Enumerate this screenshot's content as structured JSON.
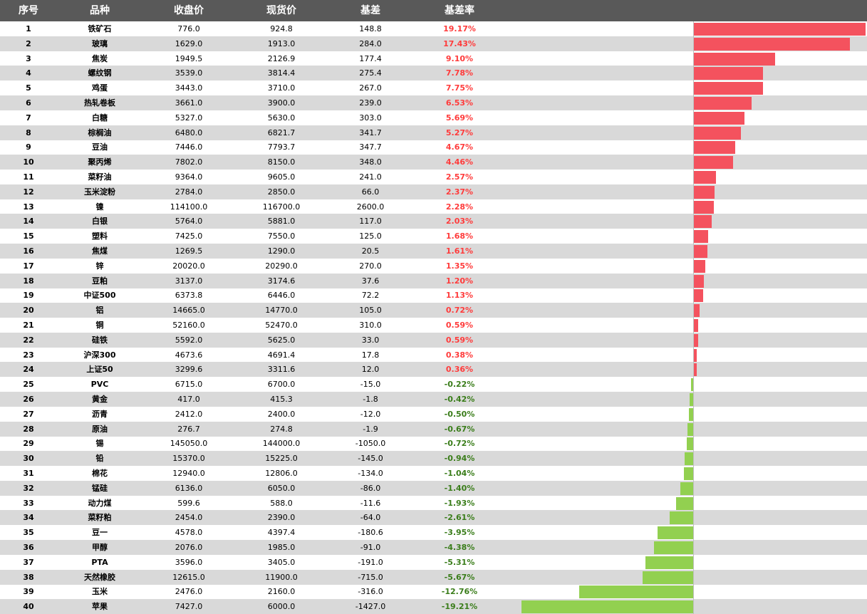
{
  "header": {
    "col_idx": "序号",
    "col_name": "品种",
    "col_close": "收盘价",
    "col_spot": "现货价",
    "col_basis": "基差",
    "col_rate": "基差率"
  },
  "colors": {
    "header_bg": "#595959",
    "alt_row": "#d9d9d9",
    "positive": "#ff3b3b",
    "negative": "#e53935",
    "bar_positive": "#f4525e",
    "bar_negative": "#92d050",
    "rate_negative_text": "#3a7d1a"
  },
  "chart_data": {
    "type": "bar",
    "orientation": "horizontal",
    "title": "",
    "xlabel": "",
    "ylabel": "",
    "xlim": [
      -0.1921,
      0.1917
    ],
    "grid": false,
    "columns": [
      "序号",
      "品种",
      "收盘价",
      "现货价",
      "基差",
      "基差率"
    ],
    "rows": [
      {
        "idx": "1",
        "name": "铁矿石",
        "close": "776.0",
        "spot": "924.8",
        "basis": "148.8",
        "rate": "19.17%",
        "value": 0.1917
      },
      {
        "idx": "2",
        "name": "玻璃",
        "close": "1629.0",
        "spot": "1913.0",
        "basis": "284.0",
        "rate": "17.43%",
        "value": 0.1743
      },
      {
        "idx": "3",
        "name": "焦炭",
        "close": "1949.5",
        "spot": "2126.9",
        "basis": "177.4",
        "rate": "9.10%",
        "value": 0.091
      },
      {
        "idx": "4",
        "name": "螺纹钢",
        "close": "3539.0",
        "spot": "3814.4",
        "basis": "275.4",
        "rate": "7.78%",
        "value": 0.0778
      },
      {
        "idx": "5",
        "name": "鸡蛋",
        "close": "3443.0",
        "spot": "3710.0",
        "basis": "267.0",
        "rate": "7.75%",
        "value": 0.0775
      },
      {
        "idx": "6",
        "name": "热轧卷板",
        "close": "3661.0",
        "spot": "3900.0",
        "basis": "239.0",
        "rate": "6.53%",
        "value": 0.0653
      },
      {
        "idx": "7",
        "name": "白糖",
        "close": "5327.0",
        "spot": "5630.0",
        "basis": "303.0",
        "rate": "5.69%",
        "value": 0.0569
      },
      {
        "idx": "8",
        "name": "棕榈油",
        "close": "6480.0",
        "spot": "6821.7",
        "basis": "341.7",
        "rate": "5.27%",
        "value": 0.0527
      },
      {
        "idx": "9",
        "name": "豆油",
        "close": "7446.0",
        "spot": "7793.7",
        "basis": "347.7",
        "rate": "4.67%",
        "value": 0.0467
      },
      {
        "idx": "10",
        "name": "聚丙烯",
        "close": "7802.0",
        "spot": "8150.0",
        "basis": "348.0",
        "rate": "4.46%",
        "value": 0.0446
      },
      {
        "idx": "11",
        "name": "菜籽油",
        "close": "9364.0",
        "spot": "9605.0",
        "basis": "241.0",
        "rate": "2.57%",
        "value": 0.0257
      },
      {
        "idx": "12",
        "name": "玉米淀粉",
        "close": "2784.0",
        "spot": "2850.0",
        "basis": "66.0",
        "rate": "2.37%",
        "value": 0.0237
      },
      {
        "idx": "13",
        "name": "镍",
        "close": "114100.0",
        "spot": "116700.0",
        "basis": "2600.0",
        "rate": "2.28%",
        "value": 0.0228
      },
      {
        "idx": "14",
        "name": "白银",
        "close": "5764.0",
        "spot": "5881.0",
        "basis": "117.0",
        "rate": "2.03%",
        "value": 0.0203
      },
      {
        "idx": "15",
        "name": "塑料",
        "close": "7425.0",
        "spot": "7550.0",
        "basis": "125.0",
        "rate": "1.68%",
        "value": 0.0168
      },
      {
        "idx": "16",
        "name": "焦煤",
        "close": "1269.5",
        "spot": "1290.0",
        "basis": "20.5",
        "rate": "1.61%",
        "value": 0.0161
      },
      {
        "idx": "17",
        "name": "锌",
        "close": "20020.0",
        "spot": "20290.0",
        "basis": "270.0",
        "rate": "1.35%",
        "value": 0.0135
      },
      {
        "idx": "18",
        "name": "豆粕",
        "close": "3137.0",
        "spot": "3174.6",
        "basis": "37.6",
        "rate": "1.20%",
        "value": 0.012
      },
      {
        "idx": "19",
        "name": "中证500",
        "close": "6373.8",
        "spot": "6446.0",
        "basis": "72.2",
        "rate": "1.13%",
        "value": 0.0113
      },
      {
        "idx": "20",
        "name": "铝",
        "close": "14665.0",
        "spot": "14770.0",
        "basis": "105.0",
        "rate": "0.72%",
        "value": 0.0072
      },
      {
        "idx": "21",
        "name": "铜",
        "close": "52160.0",
        "spot": "52470.0",
        "basis": "310.0",
        "rate": "0.59%",
        "value": 0.0059
      },
      {
        "idx": "22",
        "name": "硅铁",
        "close": "5592.0",
        "spot": "5625.0",
        "basis": "33.0",
        "rate": "0.59%",
        "value": 0.0059
      },
      {
        "idx": "23",
        "name": "沪深300",
        "close": "4673.6",
        "spot": "4691.4",
        "basis": "17.8",
        "rate": "0.38%",
        "value": 0.0038
      },
      {
        "idx": "24",
        "name": "上证50",
        "close": "3299.6",
        "spot": "3311.6",
        "basis": "12.0",
        "rate": "0.36%",
        "value": 0.0036
      },
      {
        "idx": "25",
        "name": "PVC",
        "close": "6715.0",
        "spot": "6700.0",
        "basis": "-15.0",
        "rate": "-0.22%",
        "value": -0.0022
      },
      {
        "idx": "26",
        "name": "黄金",
        "close": "417.0",
        "spot": "415.3",
        "basis": "-1.8",
        "rate": "-0.42%",
        "value": -0.0042
      },
      {
        "idx": "27",
        "name": "沥青",
        "close": "2412.0",
        "spot": "2400.0",
        "basis": "-12.0",
        "rate": "-0.50%",
        "value": -0.005
      },
      {
        "idx": "28",
        "name": "原油",
        "close": "276.7",
        "spot": "274.8",
        "basis": "-1.9",
        "rate": "-0.67%",
        "value": -0.0067
      },
      {
        "idx": "29",
        "name": "锡",
        "close": "145050.0",
        "spot": "144000.0",
        "basis": "-1050.0",
        "rate": "-0.72%",
        "value": -0.0072
      },
      {
        "idx": "30",
        "name": "铅",
        "close": "15370.0",
        "spot": "15225.0",
        "basis": "-145.0",
        "rate": "-0.94%",
        "value": -0.0094
      },
      {
        "idx": "31",
        "name": "棉花",
        "close": "12940.0",
        "spot": "12806.0",
        "basis": "-134.0",
        "rate": "-1.04%",
        "value": -0.0104
      },
      {
        "idx": "32",
        "name": "锰硅",
        "close": "6136.0",
        "spot": "6050.0",
        "basis": "-86.0",
        "rate": "-1.40%",
        "value": -0.014
      },
      {
        "idx": "33",
        "name": "动力煤",
        "close": "599.6",
        "spot": "588.0",
        "basis": "-11.6",
        "rate": "-1.93%",
        "value": -0.0193
      },
      {
        "idx": "34",
        "name": "菜籽粕",
        "close": "2454.0",
        "spot": "2390.0",
        "basis": "-64.0",
        "rate": "-2.61%",
        "value": -0.0261
      },
      {
        "idx": "35",
        "name": "豆一",
        "close": "4578.0",
        "spot": "4397.4",
        "basis": "-180.6",
        "rate": "-3.95%",
        "value": -0.0395
      },
      {
        "idx": "36",
        "name": "甲醇",
        "close": "2076.0",
        "spot": "1985.0",
        "basis": "-91.0",
        "rate": "-4.38%",
        "value": -0.0438
      },
      {
        "idx": "37",
        "name": "PTA",
        "close": "3596.0",
        "spot": "3405.0",
        "basis": "-191.0",
        "rate": "-5.31%",
        "value": -0.0531
      },
      {
        "idx": "38",
        "name": "天然橡胶",
        "close": "12615.0",
        "spot": "11900.0",
        "basis": "-715.0",
        "rate": "-5.67%",
        "value": -0.0567
      },
      {
        "idx": "39",
        "name": "玉米",
        "close": "2476.0",
        "spot": "2160.0",
        "basis": "-316.0",
        "rate": "-12.76%",
        "value": -0.1276
      },
      {
        "idx": "40",
        "name": "苹果",
        "close": "7427.0",
        "spot": "6000.0",
        "basis": "-1427.0",
        "rate": "-19.21%",
        "value": -0.1921
      }
    ]
  }
}
